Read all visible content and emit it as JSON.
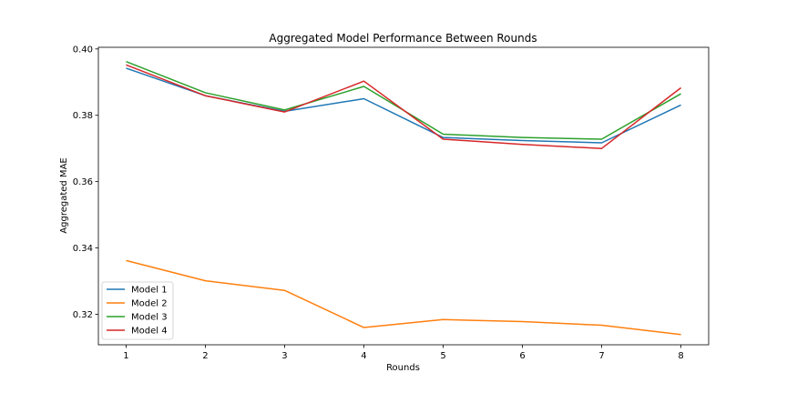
{
  "chart_data": {
    "type": "line",
    "title": "Aggregated Model Performance Between Rounds",
    "xlabel": "Rounds",
    "ylabel": "Aggregated MAE",
    "x": [
      1,
      2,
      3,
      4,
      5,
      6,
      7,
      8
    ],
    "xlim": [
      0.65,
      8.35
    ],
    "ylim": [
      0.3108,
      0.4005
    ],
    "xticks": [
      "1",
      "2",
      "3",
      "4",
      "5",
      "6",
      "7",
      "8"
    ],
    "yticks": [
      "0.32",
      "0.34",
      "0.36",
      "0.38",
      "0.40"
    ],
    "grid": false,
    "legend_position": "lower-left",
    "series": [
      {
        "name": "Model 1",
        "color": "#1f77b4",
        "values": [
          0.3942,
          0.3859,
          0.3812,
          0.385,
          0.3733,
          0.3724,
          0.3717,
          0.3831
        ]
      },
      {
        "name": "Model 2",
        "color": "#ff7f0e",
        "values": [
          0.3362,
          0.3301,
          0.3272,
          0.316,
          0.3184,
          0.3178,
          0.3167,
          0.3139
        ]
      },
      {
        "name": "Model 3",
        "color": "#2ca02c",
        "values": [
          0.3962,
          0.3868,
          0.3816,
          0.3887,
          0.3743,
          0.3733,
          0.3728,
          0.3865
        ]
      },
      {
        "name": "Model 4",
        "color": "#d62728",
        "values": [
          0.3952,
          0.3859,
          0.381,
          0.3903,
          0.3728,
          0.3712,
          0.37,
          0.3883
        ]
      }
    ]
  }
}
